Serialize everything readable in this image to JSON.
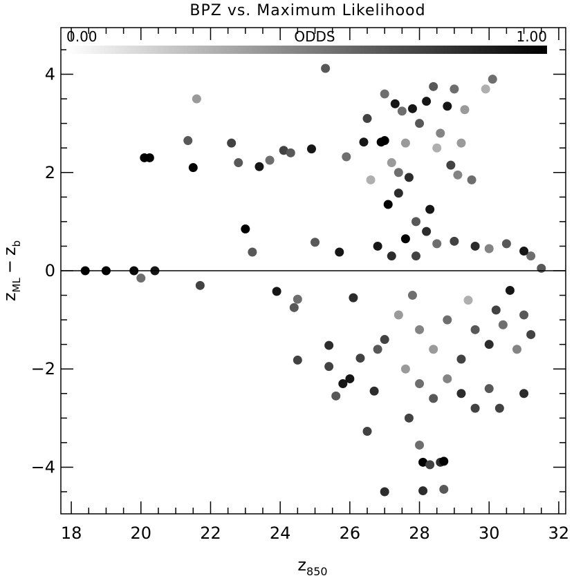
{
  "chart_data": {
    "type": "scatter",
    "title": "BPZ vs. Maximum Likelihood",
    "xlabel": "z",
    "xlabel_sub": "850",
    "ylabel_main": "z",
    "ylabel_sub1": "ML",
    "ylabel_minus": "−",
    "ylabel_main2": "z",
    "ylabel_sub2": "b",
    "xlim": [
      17.7,
      32.2
    ],
    "ylim": [
      -4.95,
      4.95
    ],
    "xticks": [
      18,
      20,
      22,
      24,
      26,
      28,
      30,
      32
    ],
    "yticks": [
      -4,
      -2,
      0,
      2,
      4
    ],
    "xtick_labels": [
      "18",
      "20",
      "22",
      "24",
      "26",
      "28",
      "30",
      "32"
    ],
    "ytick_labels": [
      "−4",
      "−2",
      "0",
      "2",
      "4"
    ],
    "reference_line_y": 0,
    "colorbar": {
      "label": "ODDS",
      "min_label": "0.00",
      "max_label": "1.00",
      "from_color": "#ffffff",
      "to_color": "#000000"
    },
    "point_color_scale": "grayscale by ODDS, 0 = white, 1 = black",
    "points": [
      [
        18.4,
        0.0,
        1.0
      ],
      [
        19.0,
        0.0,
        1.0
      ],
      [
        19.8,
        0.0,
        0.95
      ],
      [
        20.1,
        2.3,
        1.0
      ],
      [
        20.25,
        2.3,
        1.0
      ],
      [
        20.0,
        -0.15,
        0.5
      ],
      [
        20.4,
        0.0,
        0.9
      ],
      [
        21.6,
        3.5,
        0.3
      ],
      [
        21.5,
        2.1,
        1.0
      ],
      [
        21.35,
        2.65,
        0.6
      ],
      [
        21.7,
        -0.3,
        0.7
      ],
      [
        22.6,
        2.6,
        0.7
      ],
      [
        22.8,
        2.2,
        0.6
      ],
      [
        23.0,
        0.85,
        1.0
      ],
      [
        23.2,
        0.38,
        0.6
      ],
      [
        23.4,
        2.12,
        0.9
      ],
      [
        23.7,
        2.25,
        0.5
      ],
      [
        23.9,
        -0.42,
        0.9
      ],
      [
        24.1,
        2.45,
        0.7
      ],
      [
        24.3,
        2.4,
        0.6
      ],
      [
        24.4,
        -0.75,
        0.6
      ],
      [
        24.5,
        -0.58,
        0.5
      ],
      [
        24.5,
        -1.82,
        0.7
      ],
      [
        24.9,
        2.48,
        0.9
      ],
      [
        25.0,
        0.58,
        0.6
      ],
      [
        25.3,
        4.12,
        0.6
      ],
      [
        25.4,
        -1.52,
        0.8
      ],
      [
        25.4,
        -1.95,
        0.7
      ],
      [
        25.6,
        -2.55,
        0.6
      ],
      [
        25.7,
        0.38,
        0.9
      ],
      [
        25.8,
        -2.3,
        0.9
      ],
      [
        25.9,
        2.32,
        0.5
      ],
      [
        26.0,
        -2.2,
        0.9
      ],
      [
        26.1,
        -0.55,
        0.8
      ],
      [
        26.3,
        -1.78,
        0.7
      ],
      [
        26.4,
        2.62,
        0.9
      ],
      [
        26.5,
        -3.27,
        0.7
      ],
      [
        26.5,
        3.1,
        0.7
      ],
      [
        26.6,
        1.85,
        0.2
      ],
      [
        26.7,
        -2.45,
        0.8
      ],
      [
        26.8,
        -1.6,
        0.6
      ],
      [
        26.9,
        2.62,
        1.0
      ],
      [
        27.0,
        2.65,
        1.0
      ],
      [
        27.0,
        -4.5,
        0.8
      ],
      [
        27.0,
        3.6,
        0.5
      ],
      [
        27.1,
        1.35,
        1.0
      ],
      [
        27.2,
        2.2,
        0.3
      ],
      [
        27.3,
        3.4,
        0.9
      ],
      [
        27.4,
        1.58,
        0.8
      ],
      [
        27.5,
        3.25,
        0.5
      ],
      [
        27.6,
        0.65,
        1.0
      ],
      [
        27.7,
        1.9,
        0.8
      ],
      [
        27.7,
        -3.0,
        0.7
      ],
      [
        27.8,
        3.3,
        0.9
      ],
      [
        27.9,
        0.3,
        0.7
      ],
      [
        28.0,
        -3.55,
        0.5
      ],
      [
        28.1,
        -3.9,
        1.0
      ],
      [
        28.1,
        -4.48,
        0.8
      ],
      [
        28.2,
        3.45,
        0.9
      ],
      [
        28.3,
        1.25,
        0.9
      ],
      [
        28.3,
        -3.95,
        0.7
      ],
      [
        28.4,
        3.75,
        0.6
      ],
      [
        28.5,
        2.5,
        0.2
      ],
      [
        28.6,
        -3.9,
        0.8
      ],
      [
        28.7,
        -3.88,
        1.0
      ],
      [
        28.7,
        -4.45,
        0.6
      ],
      [
        28.8,
        3.35,
        0.9
      ],
      [
        28.9,
        2.15,
        0.7
      ],
      [
        29.0,
        3.7,
        0.5
      ],
      [
        29.1,
        1.95,
        0.4
      ],
      [
        29.3,
        3.28,
        0.3
      ],
      [
        29.5,
        1.85,
        0.5
      ],
      [
        29.9,
        3.7,
        0.2
      ],
      [
        30.1,
        3.9,
        0.5
      ],
      [
        30.3,
        -2.8,
        0.7
      ],
      [
        31.0,
        -2.5,
        0.8
      ],
      [
        31.2,
        0.3,
        0.5
      ],
      [
        31.5,
        0.05,
        0.6
      ],
      [
        27.4,
        2.0,
        0.5
      ],
      [
        27.6,
        2.6,
        0.3
      ],
      [
        28.0,
        3.0,
        0.6
      ],
      [
        28.6,
        2.8,
        0.4
      ],
      [
        29.2,
        2.6,
        0.3
      ],
      [
        27.9,
        1.0,
        0.6
      ],
      [
        28.2,
        0.8,
        0.8
      ],
      [
        28.5,
        0.55,
        0.5
      ],
      [
        29.0,
        0.6,
        0.7
      ],
      [
        29.6,
        0.5,
        0.8
      ],
      [
        30.0,
        0.45,
        0.4
      ],
      [
        30.5,
        0.55,
        0.6
      ],
      [
        31.0,
        0.4,
        0.9
      ],
      [
        26.8,
        0.5,
        0.9
      ],
      [
        27.2,
        0.3,
        0.8
      ],
      [
        28.0,
        -1.2,
        0.4
      ],
      [
        28.4,
        -1.6,
        0.3
      ],
      [
        28.8,
        -1.0,
        0.5
      ],
      [
        29.2,
        -1.8,
        0.7
      ],
      [
        29.6,
        -1.2,
        0.6
      ],
      [
        30.0,
        -1.5,
        0.8
      ],
      [
        30.4,
        -1.1,
        0.5
      ],
      [
        30.8,
        -1.6,
        0.4
      ],
      [
        31.2,
        -1.3,
        0.7
      ],
      [
        27.6,
        -2.0,
        0.3
      ],
      [
        28.0,
        -2.3,
        0.5
      ],
      [
        28.4,
        -2.6,
        0.6
      ],
      [
        28.8,
        -2.2,
        0.4
      ],
      [
        29.2,
        -2.5,
        0.8
      ],
      [
        29.6,
        -2.8,
        0.7
      ],
      [
        30.0,
        -2.4,
        0.6
      ],
      [
        27.0,
        -1.4,
        0.7
      ],
      [
        27.4,
        -0.9,
        0.3
      ],
      [
        27.8,
        -0.5,
        0.5
      ],
      [
        29.4,
        -0.6,
        0.2
      ],
      [
        30.2,
        -0.8,
        0.7
      ],
      [
        30.6,
        -0.4,
        0.9
      ],
      [
        31.0,
        -0.9,
        0.6
      ]
    ]
  }
}
